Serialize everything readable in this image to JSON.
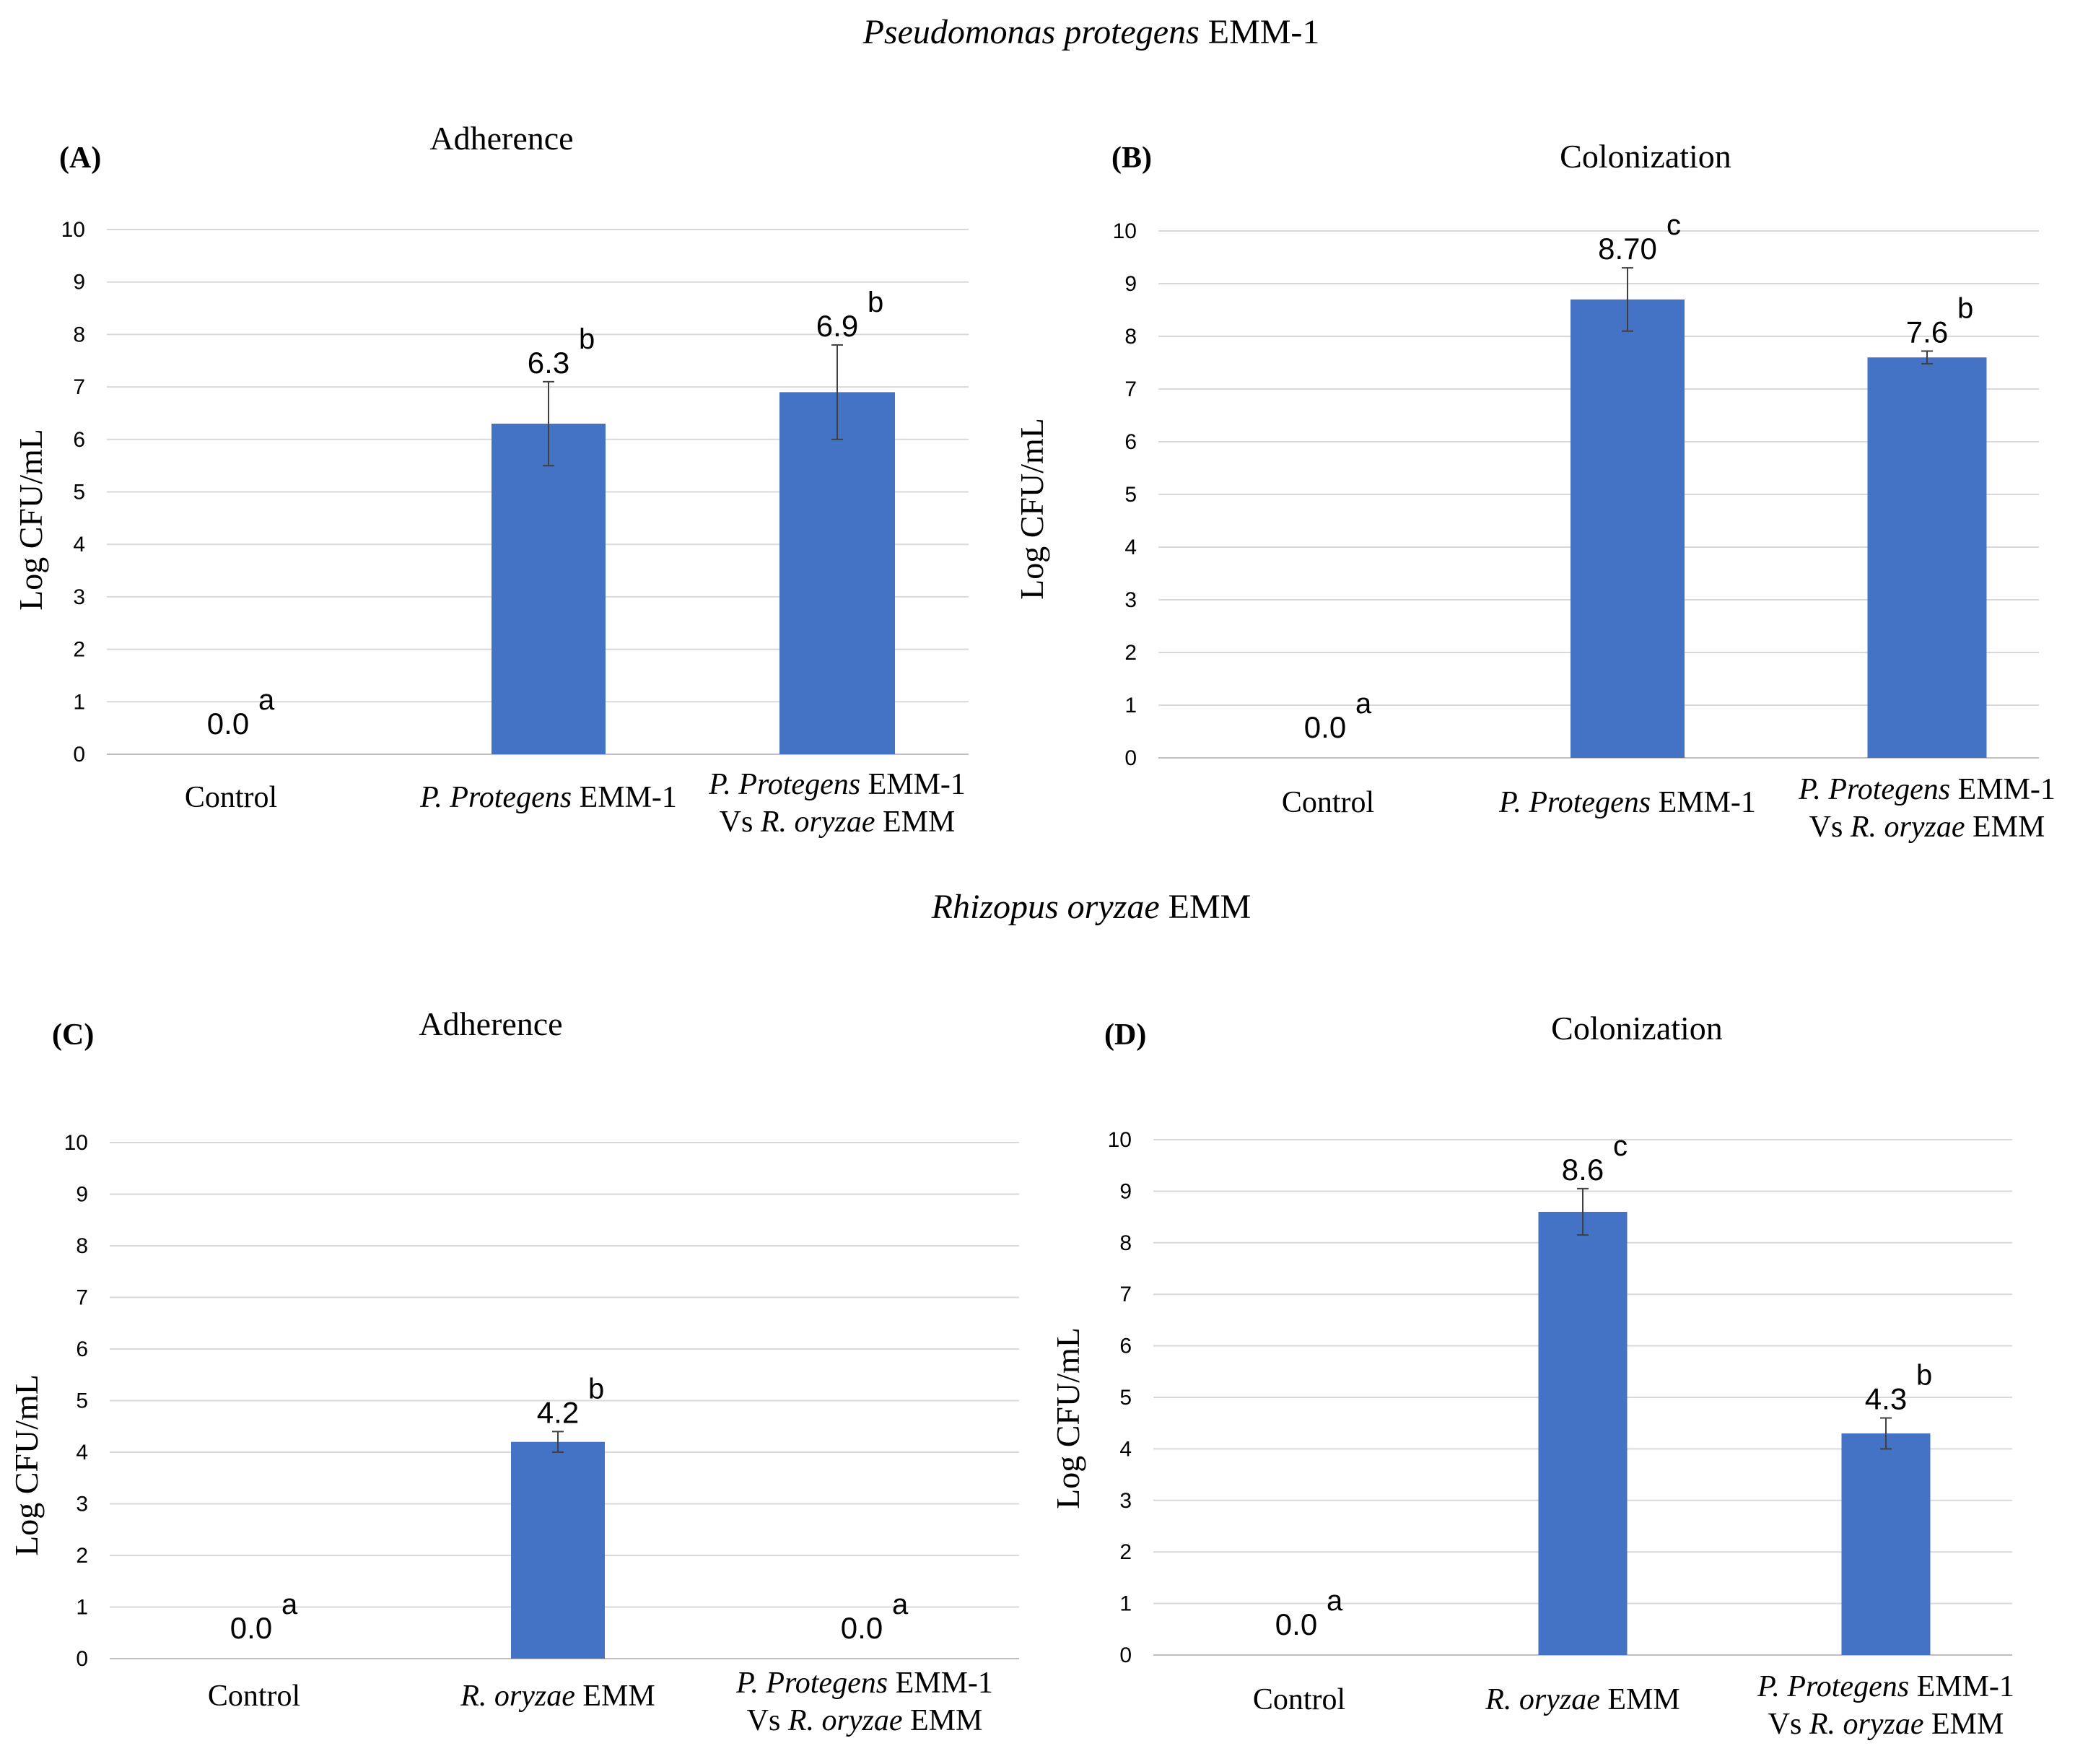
{
  "figure": {
    "section_titles": [
      {
        "italic": "Pseudomonas protegens",
        "plain": " EMM-1"
      },
      {
        "italic": "Rhizopus oryzae",
        "plain": " EMM"
      }
    ]
  },
  "colors": {
    "bar": "#4472C4",
    "grid": "#d9d9d9",
    "error": "#404040"
  },
  "chart_data": [
    {
      "type": "bar",
      "panel_label": "(A)",
      "title": "Adherence",
      "ylabel": "Log CFU/mL",
      "ylim": [
        0,
        10
      ],
      "yticks": [
        "0",
        "1",
        "2",
        "3",
        "4",
        "5",
        "6",
        "7",
        "8",
        "9",
        "10"
      ],
      "categories": [
        {
          "lines": [
            [
              {
                "t": "Control",
                "i": false
              }
            ]
          ]
        },
        {
          "lines": [
            [
              {
                "t": "P. Protegens",
                "i": true
              },
              {
                "t": " EMM-1",
                "i": false
              }
            ]
          ]
        },
        {
          "lines": [
            [
              {
                "t": "P. Protegens",
                "i": true
              },
              {
                "t": " EMM-1",
                "i": false
              }
            ],
            [
              {
                "t": "Vs ",
                "i": false
              },
              {
                "t": "R. oryzae",
                "i": true
              },
              {
                "t": " EMM",
                "i": false
              }
            ]
          ]
        }
      ],
      "values": [
        0.0,
        6.3,
        6.9
      ],
      "errors": [
        0,
        0.8,
        0.9
      ],
      "value_labels": [
        "0.0",
        "6.3",
        "6.9"
      ],
      "letters": [
        "a",
        "b",
        "b"
      ]
    },
    {
      "type": "bar",
      "panel_label": "(B)",
      "title": "Colonization",
      "ylabel": "Log CFU/mL",
      "ylim": [
        0,
        10
      ],
      "yticks": [
        "0",
        "1",
        "2",
        "3",
        "4",
        "5",
        "6",
        "7",
        "8",
        "9",
        "10"
      ],
      "categories": [
        {
          "lines": [
            [
              {
                "t": "Control",
                "i": false
              }
            ]
          ]
        },
        {
          "lines": [
            [
              {
                "t": "P. Protegens",
                "i": true
              },
              {
                "t": " EMM-1",
                "i": false
              }
            ]
          ]
        },
        {
          "lines": [
            [
              {
                "t": "P. Protegens",
                "i": true
              },
              {
                "t": " EMM-1",
                "i": false
              }
            ],
            [
              {
                "t": "Vs ",
                "i": false
              },
              {
                "t": "R. oryzae",
                "i": true
              },
              {
                "t": " EMM",
                "i": false
              }
            ]
          ]
        }
      ],
      "values": [
        0.0,
        8.7,
        7.6
      ],
      "errors": [
        0,
        0.6,
        0.12
      ],
      "value_labels": [
        "0.0",
        "8.70",
        "7.6"
      ],
      "letters": [
        "a",
        "c",
        "b"
      ]
    },
    {
      "type": "bar",
      "panel_label": "(C)",
      "title": "Adherence",
      "ylabel": "Log CFU/mL",
      "ylim": [
        0,
        10
      ],
      "yticks": [
        "0",
        "1",
        "2",
        "3",
        "4",
        "5",
        "6",
        "7",
        "8",
        "9",
        "10"
      ],
      "categories": [
        {
          "lines": [
            [
              {
                "t": "Control",
                "i": false
              }
            ]
          ]
        },
        {
          "lines": [
            [
              {
                "t": "R. oryzae",
                "i": true
              },
              {
                "t": " EMM",
                "i": false
              }
            ]
          ]
        },
        {
          "lines": [
            [
              {
                "t": "P. Protegens",
                "i": true
              },
              {
                "t": " EMM-1",
                "i": false
              }
            ],
            [
              {
                "t": "Vs ",
                "i": false
              },
              {
                "t": "R. oryzae",
                "i": true
              },
              {
                "t": " EMM",
                "i": false
              }
            ]
          ]
        }
      ],
      "values": [
        0.0,
        4.2,
        0.0
      ],
      "errors": [
        0,
        0.2,
        0
      ],
      "value_labels": [
        "0.0",
        "4.2",
        "0.0"
      ],
      "letters": [
        "a",
        "b",
        "a"
      ]
    },
    {
      "type": "bar",
      "panel_label": "(D)",
      "title": "Colonization",
      "ylabel": "Log CFU/mL",
      "ylim": [
        0,
        10
      ],
      "yticks": [
        "0",
        "1",
        "2",
        "3",
        "4",
        "5",
        "6",
        "7",
        "8",
        "9",
        "10"
      ],
      "categories": [
        {
          "lines": [
            [
              {
                "t": "Control",
                "i": false
              }
            ]
          ]
        },
        {
          "lines": [
            [
              {
                "t": "R. oryzae",
                "i": true
              },
              {
                "t": " EMM",
                "i": false
              }
            ]
          ]
        },
        {
          "lines": [
            [
              {
                "t": "P. Protegens",
                "i": true
              },
              {
                "t": " EMM-1",
                "i": false
              }
            ],
            [
              {
                "t": "Vs ",
                "i": false
              },
              {
                "t": "R. oryzae",
                "i": true
              },
              {
                "t": " EMM",
                "i": false
              }
            ]
          ]
        }
      ],
      "values": [
        0.0,
        8.6,
        4.3
      ],
      "errors": [
        0,
        0.45,
        0.3
      ],
      "value_labels": [
        "0.0",
        "8.6",
        "4.3"
      ],
      "letters": [
        "a",
        "c",
        "b"
      ]
    }
  ]
}
